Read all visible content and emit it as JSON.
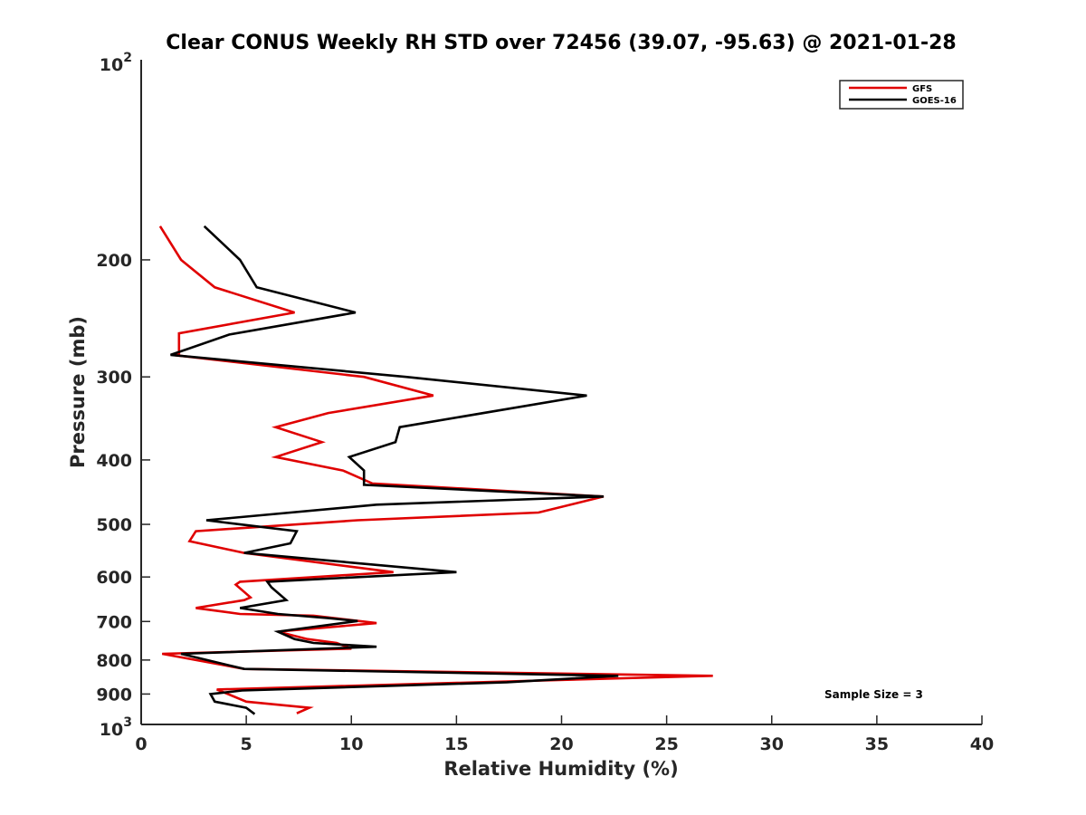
{
  "chart_data": {
    "type": "line",
    "title": "Clear CONUS Weekly RH STD over 72456 (39.07, -95.63) @ 2021-01-28",
    "xlabel": "Relative Humidity (%)",
    "ylabel": "Pressure (mb)",
    "xlim": [
      0,
      40
    ],
    "ylim": [
      100,
      1000
    ],
    "yscale": "log",
    "y_reversed": true,
    "grid": false,
    "x_ticks": [
      0,
      5,
      10,
      15,
      20,
      25,
      30,
      35,
      40
    ],
    "x_tick_labels": [
      "0",
      "5",
      "10",
      "15",
      "20",
      "25",
      "30",
      "35",
      "40"
    ],
    "y_ticks": [
      100,
      200,
      300,
      400,
      500,
      600,
      700,
      800,
      900,
      1000
    ],
    "y_tick_labels": [
      {
        "base": "10",
        "exp": "2"
      },
      {
        "text": "200"
      },
      {
        "text": "300"
      },
      {
        "text": "400"
      },
      {
        "text": "500"
      },
      {
        "text": "600"
      },
      {
        "text": "700"
      },
      {
        "text": "800"
      },
      {
        "text": "900"
      },
      {
        "base": "10",
        "exp": "3"
      }
    ],
    "legend": {
      "placement": "top-right",
      "entries": [
        {
          "name": "GFS",
          "color": "#e00000"
        },
        {
          "name": "GOES-16",
          "color": "#000000"
        }
      ]
    },
    "annotations": [
      {
        "text": "Sample Size = 3",
        "placement": "bottom-right"
      }
    ],
    "series": [
      {
        "name": "GFS",
        "color": "#e00000",
        "points": [
          [
            0.9,
            178
          ],
          [
            1.9,
            200
          ],
          [
            3.5,
            220
          ],
          [
            7.3,
            240
          ],
          [
            1.8,
            258
          ],
          [
            1.8,
            278
          ],
          [
            1.5,
            278
          ],
          [
            10.6,
            300
          ],
          [
            13.9,
            320
          ],
          [
            8.9,
            340
          ],
          [
            6.4,
            357
          ],
          [
            8.6,
            376
          ],
          [
            6.4,
            396
          ],
          [
            9.6,
            415
          ],
          [
            11.0,
            434
          ],
          [
            22.0,
            454
          ],
          [
            18.9,
            480
          ],
          [
            10.3,
            493
          ],
          [
            2.6,
            512
          ],
          [
            2.3,
            530
          ],
          [
            4.9,
            552
          ],
          [
            12.0,
            590
          ],
          [
            4.7,
            610
          ],
          [
            4.5,
            616
          ],
          [
            5.2,
            644
          ],
          [
            4.9,
            650
          ],
          [
            2.6,
            668
          ],
          [
            4.7,
            682
          ],
          [
            8.2,
            686
          ],
          [
            11.2,
            704
          ],
          [
            6.5,
            725
          ],
          [
            7.9,
            744
          ],
          [
            9.3,
            754
          ],
          [
            10.0,
            769
          ],
          [
            1.0,
            783
          ],
          [
            4.9,
            825
          ],
          [
            27.2,
            845
          ],
          [
            3.6,
            886
          ],
          [
            5.0,
            924
          ],
          [
            8.0,
            944
          ],
          [
            7.4,
            962
          ]
        ]
      },
      {
        "name": "GOES-16",
        "color": "#000000",
        "points": [
          [
            3.0,
            178
          ],
          [
            4.7,
            200
          ],
          [
            5.5,
            220
          ],
          [
            10.2,
            240
          ],
          [
            4.2,
            259
          ],
          [
            1.4,
            278
          ],
          [
            12.6,
            300
          ],
          [
            21.2,
            320
          ],
          [
            12.3,
            357
          ],
          [
            12.1,
            376
          ],
          [
            9.9,
            396
          ],
          [
            10.6,
            415
          ],
          [
            10.6,
            436
          ],
          [
            22.0,
            454
          ],
          [
            11.2,
            467
          ],
          [
            3.1,
            493
          ],
          [
            7.4,
            512
          ],
          [
            7.1,
            534
          ],
          [
            4.9,
            552
          ],
          [
            15.0,
            590
          ],
          [
            6.0,
            610
          ],
          [
            6.2,
            622
          ],
          [
            6.9,
            650
          ],
          [
            4.7,
            668
          ],
          [
            6.5,
            682
          ],
          [
            8.9,
            692
          ],
          [
            10.3,
            699
          ],
          [
            6.5,
            725
          ],
          [
            7.3,
            744
          ],
          [
            8.2,
            754
          ],
          [
            11.2,
            764
          ],
          [
            1.9,
            783
          ],
          [
            4.9,
            825
          ],
          [
            22.7,
            845
          ],
          [
            17.4,
            864
          ],
          [
            4.8,
            889
          ],
          [
            3.3,
            900
          ],
          [
            3.5,
            924
          ],
          [
            5.0,
            944
          ],
          [
            5.4,
            965
          ]
        ]
      }
    ]
  }
}
